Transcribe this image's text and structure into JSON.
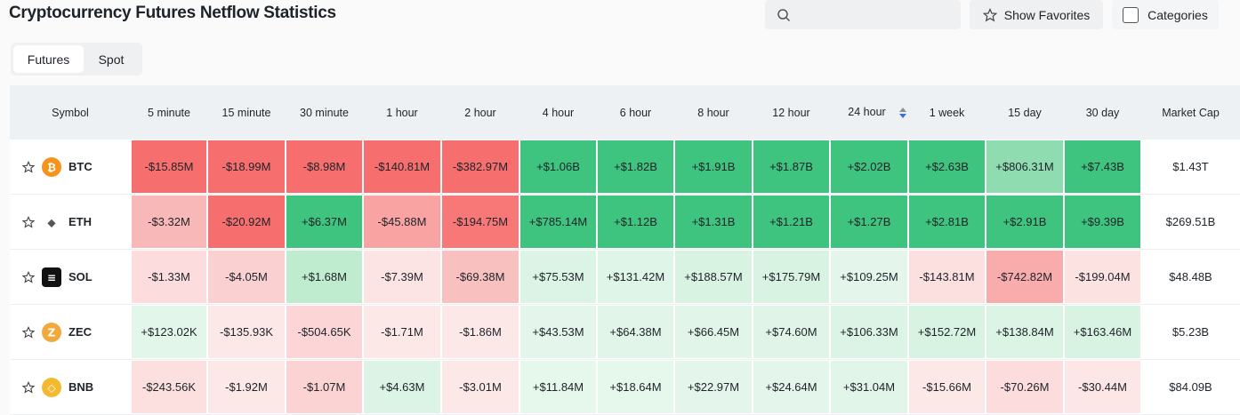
{
  "header": {
    "title": "Cryptocurrency Futures Netflow Statistics",
    "buttons": [
      "Show Favorites",
      "Categories"
    ]
  },
  "tabs": [
    "Futures",
    "Spot"
  ],
  "table": {
    "columns": [
      "Symbol",
      "5 minute",
      "15 minute",
      "30 minute",
      "1 hour",
      "2 hour",
      "4 hour",
      "6 hour",
      "8 hour",
      "12 hour",
      "24 hour",
      "1 week",
      "15 day",
      "30 day",
      "Market Cap"
    ],
    "rows": [
      {
        "symbol": "BTC",
        "cells": [
          "-$15.85M",
          "-$18.99M",
          "-$8.98M",
          "-$140.81M",
          "-$382.97M",
          "+$1.06B",
          "+$1.82B",
          "+$1.91B",
          "+$1.87B",
          "+$2.02B",
          "+$2.63B",
          "+$806.31M",
          "+$7.43B"
        ],
        "market_cap": "$1.43T",
        "colors": [
          "#f76e6e",
          "#f76e6e",
          "#f76e6e",
          "#f76e6e",
          "#f76e6e",
          "#3ec47e",
          "#3ec47e",
          "#3ec47e",
          "#3ec47e",
          "#3ec47e",
          "#3ec47e",
          "#8fdcb0",
          "#3ec47e"
        ]
      },
      {
        "symbol": "ETH",
        "cells": [
          "-$3.32M",
          "-$20.92M",
          "+$6.37M",
          "-$45.88M",
          "-$194.75M",
          "+$785.14M",
          "+$1.12B",
          "+$1.31B",
          "+$1.21B",
          "+$1.27B",
          "+$2.81B",
          "+$2.91B",
          "+$9.39B"
        ],
        "market_cap": "$269.51B",
        "colors": [
          "#f9b8b8",
          "#f76e6e",
          "#3ec47e",
          "#f9a3a3",
          "#f87878",
          "#3ec47e",
          "#3ec47e",
          "#3ec47e",
          "#3ec47e",
          "#3ec47e",
          "#3ec47e",
          "#3ec47e",
          "#3ec47e"
        ]
      },
      {
        "symbol": "SOL",
        "cells": [
          "-$1.33M",
          "-$4.05M",
          "+$1.68M",
          "-$7.39M",
          "-$69.38M",
          "+$75.53M",
          "+$131.42M",
          "+$188.57M",
          "+$175.79M",
          "+$109.25M",
          "-$143.81M",
          "-$742.82M",
          "-$199.04M"
        ],
        "market_cap": "$48.48B",
        "colors": [
          "#fcdcdc",
          "#fbd0d0",
          "#bfeccf",
          "#fde4e4",
          "#f9c0c0",
          "#dcf4e5",
          "#dff5e7",
          "#d9f3e3",
          "#d9f3e3",
          "#e4f6eb",
          "#fce0e0",
          "#f8acac",
          "#fde2e2"
        ]
      },
      {
        "symbol": "ZEC",
        "cells": [
          "+$123.02K",
          "-$135.93K",
          "-$504.65K",
          "-$1.71M",
          "-$1.86M",
          "+$43.53M",
          "+$64.38M",
          "+$66.45M",
          "+$74.60M",
          "+$106.33M",
          "+$152.72M",
          "+$138.84M",
          "+$163.46M"
        ],
        "market_cap": "$5.23B",
        "colors": [
          "#e3f6ea",
          "#fde8e8",
          "#fcd6d6",
          "#fde8e8",
          "#fde8e8",
          "#e4f6eb",
          "#e2f5e9",
          "#e2f5e9",
          "#e0f5e8",
          "#dcf4e5",
          "#d8f3e2",
          "#dbf4e4",
          "#d8f3e2"
        ]
      },
      {
        "symbol": "BNB",
        "cells": [
          "-$243.56K",
          "-$1.92M",
          "-$1.07M",
          "+$4.63M",
          "-$3.01M",
          "+$11.84M",
          "+$18.64M",
          "+$22.97M",
          "+$24.64M",
          "+$31.04M",
          "-$15.66M",
          "-$70.26M",
          "-$30.44M"
        ],
        "market_cap": "$84.09B",
        "colors": [
          "#fce0e0",
          "#fde8e8",
          "#fbd3d3",
          "#dcf4e5",
          "#fde8e8",
          "#e6f7ec",
          "#e6f7ec",
          "#e4f6eb",
          "#e4f6eb",
          "#e2f5e9",
          "#fde8e8",
          "#fcdcdc",
          "#fde6e6"
        ]
      }
    ]
  }
}
